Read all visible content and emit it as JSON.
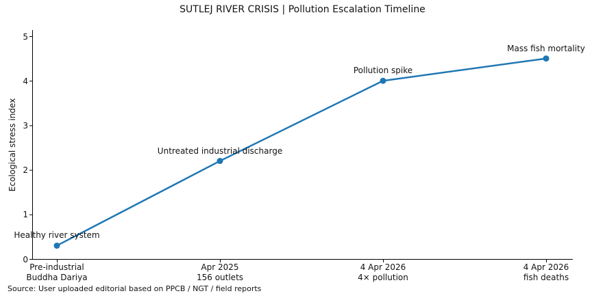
{
  "chart_data": {
    "type": "line",
    "title": "SUTLEJ RIVER CRISIS | Pollution Escalation Timeline",
    "ylabel": "Ecological stress index",
    "xlabel": "",
    "x_tick_labels": [
      [
        "Pre-industrial",
        "Buddha Dariya"
      ],
      [
        "Apr 2025",
        "156 outlets"
      ],
      [
        "4 Apr 2026",
        "4× pollution"
      ],
      [
        "4 Apr 2026",
        "fish deaths"
      ]
    ],
    "values": [
      0.3,
      2.2,
      4.0,
      4.5
    ],
    "point_annotations": [
      "Healthy river system",
      "Untreated industrial discharge",
      "Pollution spike",
      "Mass fish mortality"
    ],
    "yticks": [
      0,
      1,
      2,
      3,
      4,
      5
    ],
    "ylim": [
      0,
      5.15
    ],
    "grid": false,
    "legend": "none",
    "line_color": "#1f77b4",
    "axis_color": "#000000",
    "source_note": "Source: User uploaded editorial based on PPCB / NGT / field reports"
  }
}
